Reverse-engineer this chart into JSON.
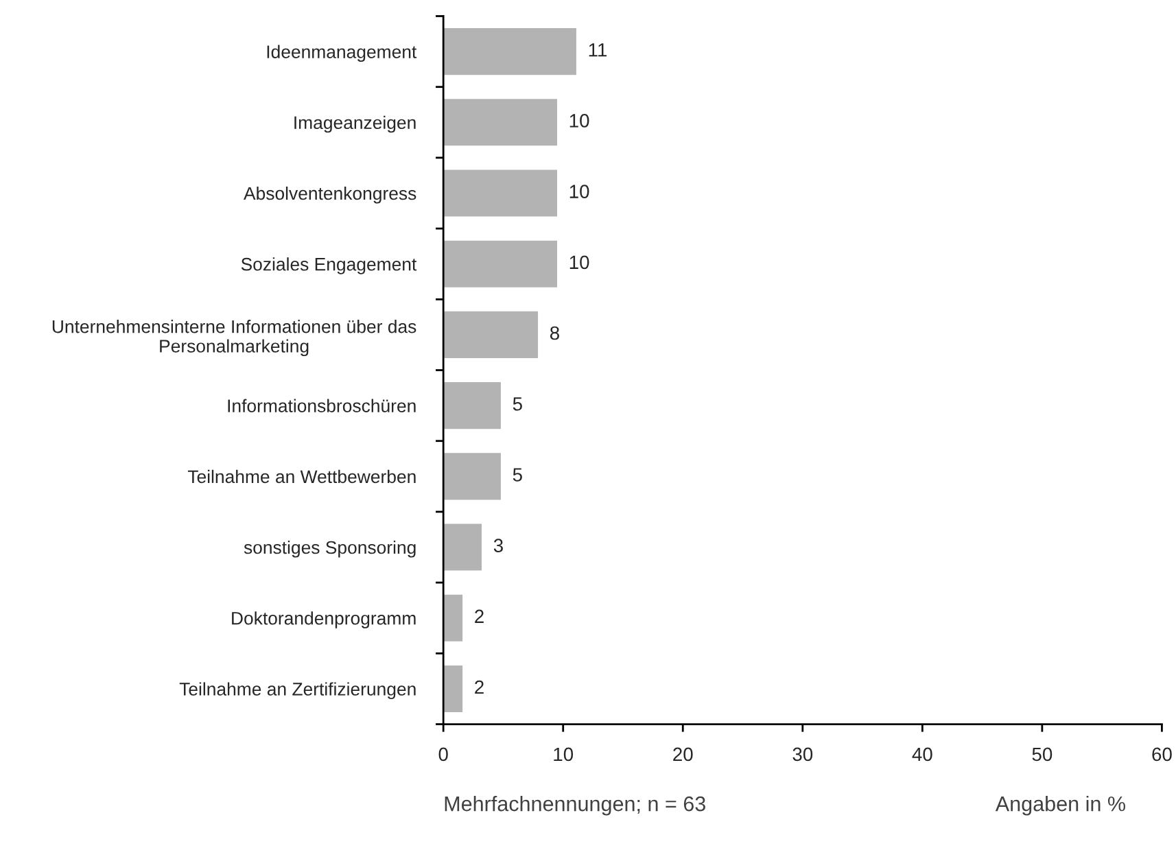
{
  "chart_data": {
    "type": "bar",
    "orientation": "horizontal",
    "categories": [
      "Ideenmanagement",
      "Imageanzeigen",
      "Absolventenkongress",
      "Soziales Engagement",
      "Unternehmensinterne Informationen über das\nPersonalmarketing",
      "Informationsbroschüren",
      "Teilnahme an Wettbewerben",
      "sonstiges Sponsoring",
      "Doktorandenprogramm",
      "Teilnahme an Zertifizierungen"
    ],
    "values": [
      11.1,
      9.5,
      9.5,
      9.5,
      7.9,
      4.8,
      4.8,
      3.2,
      1.6,
      1.6
    ],
    "value_labels": [
      "11",
      "10",
      "10",
      "10",
      "8",
      "5",
      "5",
      "3",
      "2",
      "2"
    ],
    "color": "#b3b3b3",
    "xlim": [
      0,
      60
    ],
    "xticks": [
      0,
      10,
      20,
      30,
      40,
      50,
      60
    ],
    "annotations": [
      "Mehrfachnennungen; n = 63",
      "Angaben in %"
    ]
  }
}
